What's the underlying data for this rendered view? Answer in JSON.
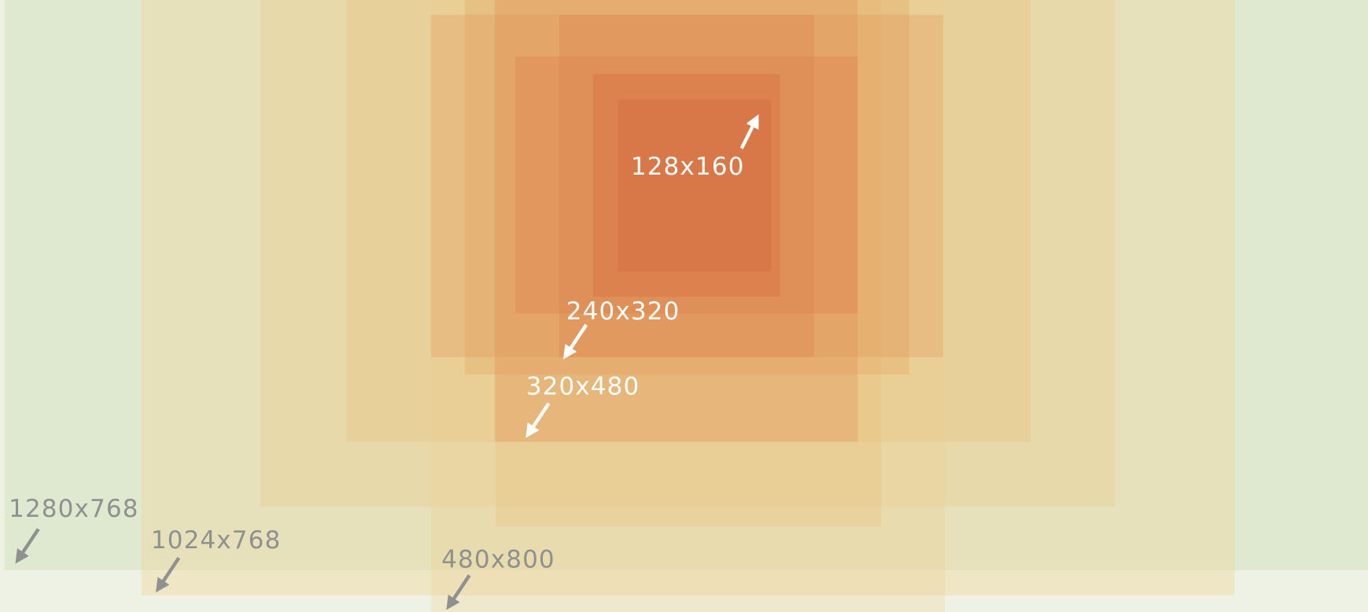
{
  "labels": [
    "1280x768",
    "1024x768",
    "480x800",
    "320x480",
    "240x320",
    "128x160"
  ]
}
